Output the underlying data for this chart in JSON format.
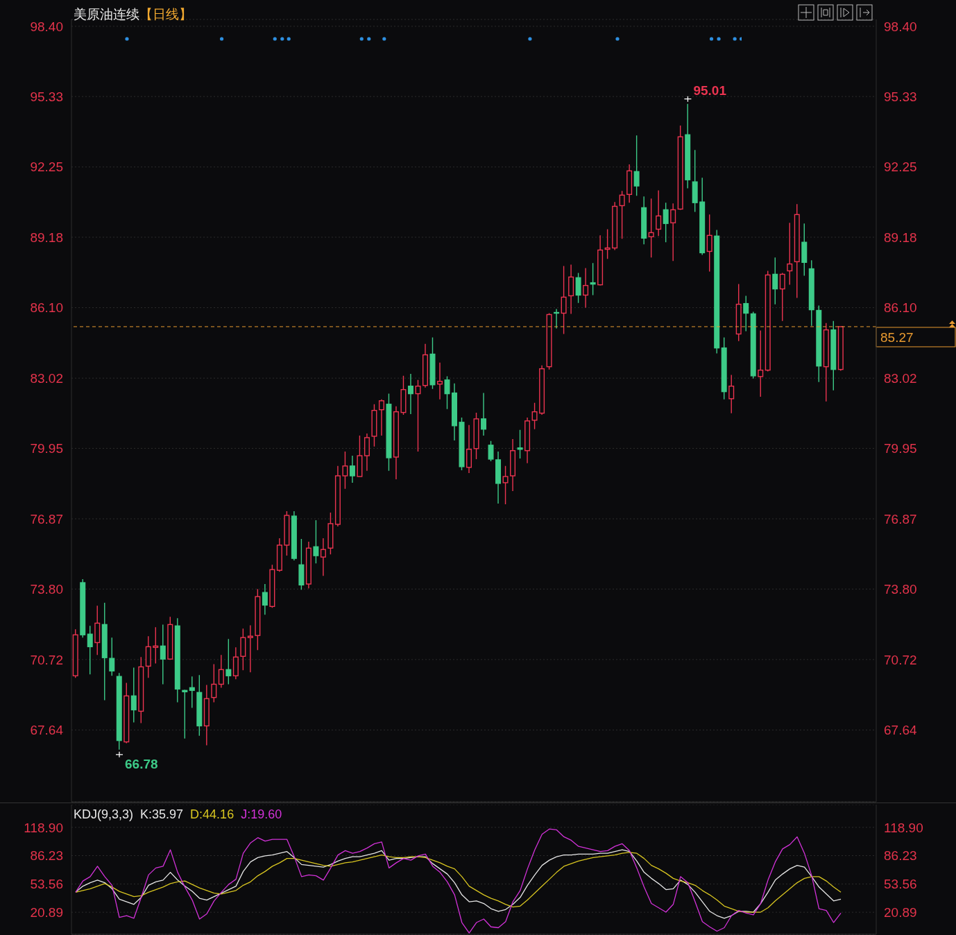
{
  "chart_data": [
    {
      "type": "candlestick",
      "title": "美原油连续",
      "subtitle": "【日线】",
      "categories": [
        null,
        null,
        null,
        null,
        null,
        null,
        null,
        null,
        null,
        null,
        null,
        null,
        null,
        null,
        null,
        null,
        null,
        null,
        null,
        null,
        null,
        null,
        null,
        null,
        null,
        null,
        null,
        null,
        null,
        null,
        null,
        null,
        null,
        null,
        null,
        null,
        null,
        null,
        null,
        null,
        null,
        null,
        null,
        null,
        null,
        null,
        null,
        null,
        null,
        null,
        null,
        null,
        null,
        null,
        null,
        null,
        null,
        null,
        null,
        null,
        null,
        null,
        null,
        null,
        null,
        null,
        null,
        null,
        null,
        null,
        null,
        null,
        null,
        null,
        null,
        null,
        null,
        null,
        null,
        null,
        null,
        null,
        null,
        null,
        null,
        null,
        null,
        null,
        null,
        null,
        null,
        null,
        null,
        null,
        null,
        null,
        null,
        null,
        null,
        null,
        null,
        null,
        null,
        null,
        null,
        null
      ],
      "ohlc": [
        [
          70.01,
          72.04,
          69.92,
          71.8
        ],
        [
          74.08,
          74.23,
          71.68,
          71.8
        ],
        [
          71.83,
          72.19,
          70.07,
          71.28
        ],
        [
          71.46,
          73.07,
          70.92,
          72.31
        ],
        [
          72.25,
          73.2,
          68.94,
          70.8
        ],
        [
          70.77,
          71.68,
          70.01,
          70.22
        ],
        [
          69.98,
          70.13,
          66.78,
          67.18
        ],
        [
          67.12,
          69.7,
          67.06,
          69.13
        ],
        [
          69.13,
          70.37,
          67.97,
          68.52
        ],
        [
          68.46,
          70.83,
          67.94,
          70.4
        ],
        [
          70.43,
          71.74,
          69.92,
          71.28
        ],
        [
          71.25,
          72.13,
          70.55,
          71.31
        ],
        [
          71.31,
          72.25,
          69.64,
          70.74
        ],
        [
          70.74,
          72.59,
          70.71,
          72.25
        ],
        [
          72.19,
          72.53,
          68.85,
          69.43
        ],
        [
          69.37,
          69.4,
          67.27,
          69.31
        ],
        [
          69.49,
          69.98,
          68.61,
          69.37
        ],
        [
          69.28,
          70.04,
          67.39,
          67.82
        ],
        [
          67.82,
          69.61,
          66.97,
          69.01
        ],
        [
          69.06,
          70.52,
          68.85,
          69.64
        ],
        [
          69.64,
          70.92,
          69.49,
          70.28
        ],
        [
          70.28,
          71.62,
          69.64,
          70.01
        ],
        [
          70.01,
          71.25,
          69.86,
          70.83
        ],
        [
          70.86,
          72.07,
          70.25,
          71.68
        ],
        [
          71.68,
          72.22,
          70.16,
          71.74
        ],
        [
          71.77,
          73.8,
          71.13,
          73.47
        ],
        [
          73.65,
          74.02,
          72.68,
          73.1
        ],
        [
          73.04,
          74.86,
          72.98,
          74.65
        ],
        [
          74.62,
          76.02,
          74.56,
          75.72
        ],
        [
          75.72,
          77.2,
          75.26,
          77.02
        ],
        [
          76.99,
          77.2,
          75.05,
          75.14
        ],
        [
          74.86,
          75.99,
          73.77,
          73.98
        ],
        [
          74.02,
          75.87,
          73.83,
          75.59
        ],
        [
          75.65,
          76.81,
          74.92,
          75.26
        ],
        [
          75.2,
          76.02,
          74.38,
          75.53
        ],
        [
          75.59,
          77.14,
          75.32,
          76.66
        ],
        [
          76.63,
          79.18,
          76.54,
          78.75
        ],
        [
          78.75,
          79.81,
          78.18,
          79.18
        ],
        [
          79.18,
          79.63,
          78.45,
          78.75
        ],
        [
          78.72,
          80.51,
          78.72,
          79.63
        ],
        [
          79.63,
          80.6,
          78.97,
          80.42
        ],
        [
          80.48,
          81.88,
          80.03,
          81.61
        ],
        [
          81.64,
          82.09,
          80.51,
          82.03
        ],
        [
          81.88,
          82.34,
          78.97,
          79.54
        ],
        [
          79.57,
          81.79,
          78.6,
          81.55
        ],
        [
          81.52,
          83.12,
          81.42,
          82.52
        ],
        [
          82.67,
          83.21,
          81.45,
          82.34
        ],
        [
          82.34,
          82.94,
          79.81,
          82.67
        ],
        [
          82.7,
          84.52,
          82.61,
          84.04
        ],
        [
          84.07,
          84.8,
          82.55,
          82.73
        ],
        [
          82.76,
          83.7,
          82.09,
          82.88
        ],
        [
          82.94,
          83.1,
          81.67,
          82.34
        ],
        [
          82.37,
          82.79,
          80.3,
          80.94
        ],
        [
          81.09,
          81.3,
          78.99,
          79.15
        ],
        [
          79.12,
          80.97,
          78.87,
          79.91
        ],
        [
          79.94,
          81.51,
          79.48,
          81.24
        ],
        [
          81.24,
          82.37,
          80.51,
          80.79
        ],
        [
          80.09,
          80.27,
          79.39,
          79.48
        ],
        [
          79.45,
          79.81,
          77.54,
          78.42
        ],
        [
          78.45,
          79.18,
          77.51,
          78.72
        ],
        [
          78.75,
          80.36,
          78.08,
          79.85
        ],
        [
          79.97,
          80.76,
          79.51,
          79.91
        ],
        [
          79.85,
          81.3,
          79.3,
          81.15
        ],
        [
          81.18,
          81.94,
          80.79,
          81.55
        ],
        [
          81.49,
          83.58,
          81.42,
          83.43
        ],
        [
          83.52,
          85.86,
          83.4,
          85.8
        ],
        [
          85.89,
          86.04,
          85.19,
          85.86
        ],
        [
          85.86,
          87.92,
          84.95,
          86.56
        ],
        [
          86.62,
          87.98,
          85.83,
          87.44
        ],
        [
          87.41,
          87.62,
          86.31,
          86.65
        ],
        [
          86.65,
          87.83,
          86.1,
          87.07
        ],
        [
          87.19,
          88.05,
          86.65,
          87.13
        ],
        [
          87.1,
          89.26,
          87.07,
          88.62
        ],
        [
          88.65,
          89.53,
          88.23,
          88.71
        ],
        [
          88.71,
          90.72,
          88.62,
          90.53
        ],
        [
          90.56,
          91.2,
          89.11,
          91.02
        ],
        [
          91.05,
          92.36,
          90.69,
          92.08
        ],
        [
          92.05,
          93.63,
          90.99,
          91.42
        ],
        [
          90.47,
          90.96,
          88.87,
          89.14
        ],
        [
          89.2,
          90.87,
          88.29,
          89.38
        ],
        [
          89.53,
          91.23,
          89.23,
          90.11
        ],
        [
          90.38,
          90.69,
          88.96,
          89.78
        ],
        [
          89.81,
          90.66,
          88.14,
          90.38
        ],
        [
          90.41,
          94.06,
          90.38,
          93.57
        ],
        [
          93.66,
          95.01,
          91.32,
          91.69
        ],
        [
          91.6,
          92.99,
          90.29,
          90.69
        ],
        [
          90.72,
          91.78,
          88.41,
          88.5
        ],
        [
          88.56,
          90.17,
          87.68,
          89.26
        ],
        [
          89.23,
          89.5,
          84.1,
          84.34
        ],
        [
          84.34,
          84.8,
          82.09,
          82.43
        ],
        [
          82.12,
          83.16,
          81.49,
          82.67
        ],
        [
          84.95,
          87.13,
          84.64,
          86.25
        ],
        [
          86.28,
          86.62,
          85.07,
          85.86
        ],
        [
          85.83,
          85.92,
          83.0,
          83.12
        ],
        [
          83.09,
          85.1,
          82.21,
          83.37
        ],
        [
          83.37,
          87.71,
          83.31,
          87.53
        ],
        [
          87.56,
          88.29,
          86.25,
          86.92
        ],
        [
          86.92,
          87.62,
          85.52,
          87.56
        ],
        [
          87.71,
          89.81,
          87.1,
          88.01
        ],
        [
          88.11,
          90.63,
          86.53,
          90.17
        ],
        [
          88.96,
          89.78,
          87.5,
          88.08
        ],
        [
          87.8,
          88.17,
          85.31,
          86.01
        ],
        [
          85.98,
          86.19,
          82.85,
          83.55
        ],
        [
          83.52,
          85.43,
          82.0,
          85.13
        ],
        [
          85.13,
          85.52,
          82.49,
          83.4
        ],
        [
          83.4,
          85.27,
          83.34,
          85.27
        ]
      ],
      "colors": [
        "#eb3450",
        "#3dcb88",
        "#3dcb88",
        "#eb3450",
        "#3dcb88",
        "#3dcb88",
        "#3dcb88",
        "#eb3450",
        "#3dcb88",
        "#eb3450",
        "#eb3450",
        "#eb3450",
        "#3dcb88",
        "#eb3450",
        "#3dcb88",
        "#3dcb88",
        "#3dcb88",
        "#3dcb88",
        "#eb3450",
        "#eb3450",
        "#eb3450",
        "#3dcb88",
        "#eb3450",
        "#eb3450",
        "#eb3450",
        "#eb3450",
        "#3dcb88",
        "#eb3450",
        "#eb3450",
        "#eb3450",
        "#3dcb88",
        "#3dcb88",
        "#eb3450",
        "#3dcb88",
        "#eb3450",
        "#eb3450",
        "#eb3450",
        "#eb3450",
        "#3dcb88",
        "#eb3450",
        "#eb3450",
        "#eb3450",
        "#eb3450",
        "#3dcb88",
        "#eb3450",
        "#eb3450",
        "#3dcb88",
        "#eb3450",
        "#eb3450",
        "#3dcb88",
        "#eb3450",
        "#3dcb88",
        "#3dcb88",
        "#3dcb88",
        "#eb3450",
        "#eb3450",
        "#3dcb88",
        "#3dcb88",
        "#3dcb88",
        "#eb3450",
        "#eb3450",
        "#3dcb88",
        "#eb3450",
        "#eb3450",
        "#eb3450",
        "#eb3450",
        "#3dcb88",
        "#eb3450",
        "#eb3450",
        "#3dcb88",
        "#eb3450",
        "#3dcb88",
        "#eb3450",
        "#eb3450",
        "#eb3450",
        "#eb3450",
        "#eb3450",
        "#3dcb88",
        "#3dcb88",
        "#eb3450",
        "#eb3450",
        "#3dcb88",
        "#eb3450",
        "#eb3450",
        "#3dcb88",
        "#3dcb88",
        "#3dcb88",
        "#eb3450",
        "#3dcb88",
        "#3dcb88",
        "#eb3450",
        "#eb3450",
        "#3dcb88",
        "#3dcb88",
        "#eb3450",
        "#eb3450",
        "#3dcb88",
        "#eb3450",
        "#eb3450",
        "#eb3450",
        "#3dcb88",
        "#3dcb88",
        "#3dcb88",
        "#eb3450",
        "#3dcb88",
        "#eb3450"
      ],
      "ylim": [
        64.5,
        98.7
      ],
      "yticks": [
        {
          "value": 98.4,
          "label": "98.40"
        },
        95.33,
        92.25,
        89.18,
        {
          "value": 86.1,
          "label": "86.10"
        },
        83.02,
        79.95,
        76.87,
        {
          "value": 73.8,
          "label": "73.80"
        },
        70.72,
        67.64
      ],
      "y2lim": [
        64.5,
        98.7
      ],
      "y2ticks": [
        {
          "value": 98.4,
          "label": "98.40"
        },
        95.33,
        92.25,
        89.18,
        {
          "value": 86.1,
          "label": "86.10"
        },
        83.02,
        79.95,
        76.87,
        {
          "value": 73.8,
          "label": "73.80"
        },
        70.72,
        67.64
      ],
      "grid": "y",
      "tick_labels": "y",
      "ref_lines": [
        {
          "axis": "y2",
          "value": 85.27,
          "label": "85.27",
          "color": "#e89a30",
          "line_style": "dashed"
        }
      ],
      "annotations": [
        "95.01",
        "66.78"
      ]
    },
    {
      "type": "line",
      "title": "KDJ(9,3,3)",
      "categories": [
        null,
        null,
        null,
        null,
        null,
        null,
        null,
        null,
        null,
        null,
        null,
        null,
        null,
        null,
        null,
        null,
        null,
        null,
        null,
        null,
        null,
        null,
        null,
        null,
        null,
        null,
        null,
        null,
        null,
        null,
        null,
        null,
        null,
        null,
        null,
        null,
        null,
        null,
        null,
        null,
        null,
        null,
        null,
        null,
        null,
        null,
        null,
        null,
        null,
        null,
        null,
        null,
        null,
        null,
        null,
        null,
        null,
        null,
        null,
        null,
        null,
        null,
        null,
        null,
        null,
        null,
        null,
        null,
        null,
        null,
        null,
        null,
        null,
        null,
        null,
        null,
        null,
        null,
        null,
        null,
        null,
        null,
        null,
        null,
        null,
        null,
        null,
        null,
        null,
        null,
        null,
        null,
        null,
        null,
        null,
        null,
        null,
        null,
        null,
        null,
        null,
        null,
        null,
        null,
        null,
        null
      ],
      "series": [
        {
          "name": "K:35.97",
          "color": "#e6e6e6",
          "values": [
            44,
            51,
            55,
            58,
            55,
            48,
            36,
            33,
            30,
            38,
            52,
            56,
            58,
            67,
            58,
            51,
            45,
            37,
            35,
            39,
            43,
            47,
            51,
            68,
            79,
            84,
            86,
            87,
            89,
            91,
            84,
            76,
            75,
            74,
            73,
            76,
            80,
            83,
            85,
            85,
            87,
            89,
            92,
            81,
            83,
            83,
            84,
            85,
            85,
            77,
            71,
            65,
            55,
            41,
            33,
            34,
            31,
            25,
            22,
            24,
            30,
            38,
            52,
            64,
            75,
            81,
            85,
            87,
            87,
            88,
            88,
            88,
            89,
            89,
            91,
            93,
            91,
            80,
            67,
            60,
            54,
            47,
            48,
            58,
            53,
            44,
            33,
            22,
            17,
            14,
            17,
            22,
            22,
            21,
            31,
            44,
            58,
            65,
            71,
            75,
            73,
            62,
            50,
            42,
            34,
            36
          ]
        },
        {
          "name": "D:44.16",
          "color": "#d8c520",
          "values": [
            44,
            46,
            48,
            51,
            54,
            50,
            45,
            42,
            39,
            40,
            44,
            47,
            50,
            54,
            56,
            57,
            53,
            49,
            46,
            43,
            42,
            44,
            46,
            52,
            56,
            63,
            68,
            74,
            78,
            83,
            83,
            81,
            79,
            77,
            75,
            74,
            76,
            78,
            79,
            81,
            83,
            85,
            87,
            85,
            84,
            84,
            85,
            85,
            84,
            81,
            78,
            74,
            71,
            62,
            51,
            46,
            41,
            37,
            34,
            30,
            27,
            28,
            35,
            43,
            51,
            59,
            67,
            74,
            77,
            80,
            82,
            84,
            85,
            86,
            87,
            89,
            90,
            89,
            83,
            75,
            71,
            66,
            60,
            57,
            55,
            52,
            46,
            41,
            35,
            28,
            25,
            22,
            21,
            21,
            21,
            26,
            34,
            41,
            48,
            55,
            60,
            62,
            62,
            57,
            50,
            44
          ]
        },
        {
          "name": "J:19.60",
          "color": "#d232d8",
          "values": [
            44,
            57,
            62,
            74,
            62,
            52,
            15,
            17,
            14,
            38,
            64,
            72,
            74,
            93,
            67,
            50,
            35,
            13,
            19,
            34,
            44,
            53,
            59,
            89,
            101,
            107,
            103,
            105,
            105,
            105,
            85,
            62,
            64,
            63,
            58,
            72,
            87,
            92,
            89,
            91,
            95,
            100,
            102,
            72,
            78,
            83,
            81,
            86,
            88,
            74,
            67,
            56,
            41,
            9,
            -3,
            9,
            13,
            4,
            3,
            10,
            33,
            46,
            71,
            93,
            111,
            117,
            116,
            108,
            104,
            97,
            95,
            93,
            91,
            92,
            97,
            100,
            92,
            72,
            50,
            31,
            26,
            21,
            30,
            62,
            55,
            33,
            10,
            4,
            -1,
            3,
            17,
            23,
            20,
            18,
            31,
            58,
            79,
            94,
            99,
            108,
            89,
            63,
            25,
            23,
            9,
            20
          ]
        }
      ],
      "ylim": [
        -4.6,
        145.2
      ],
      "yticks": [
        {
          "value": 118.9,
          "label": "118.90"
        },
        86.23,
        53.56,
        20.89
      ],
      "y2lim": [
        -4.6,
        145.2
      ],
      "y2ticks": [
        {
          "value": 118.9,
          "label": "118.90"
        },
        86.23,
        53.56,
        20.89
      ],
      "grid": "y",
      "legend": "top left",
      "tick_labels": "y"
    }
  ]
}
